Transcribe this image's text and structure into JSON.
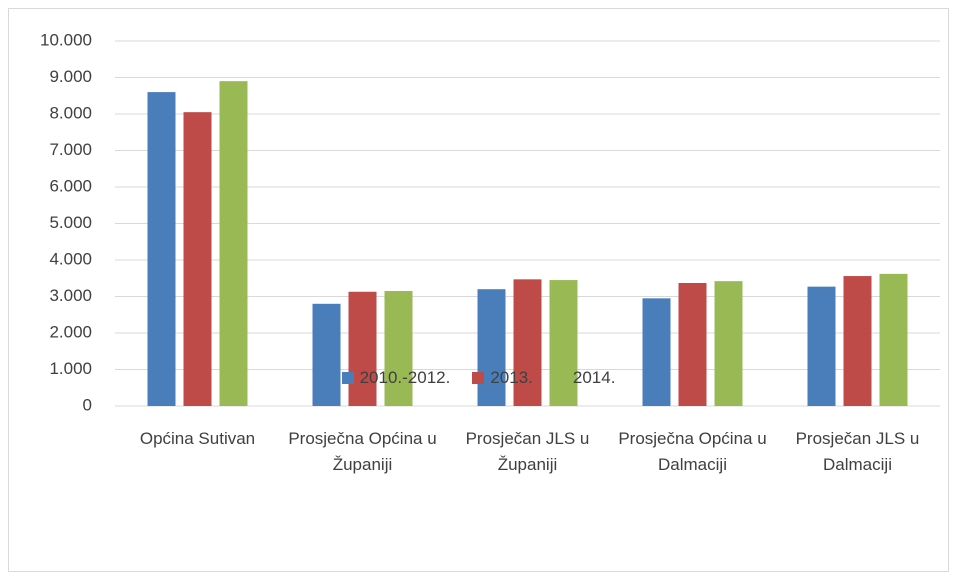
{
  "chart_data": {
    "type": "bar",
    "categories": [
      "Općina Sutivan",
      "Prosječna Općina u Županiji",
      "Prosječan JLS u Županiji",
      "Prosječna Općina u Dalmaciji",
      "Prosječan JLS u Dalmaciji"
    ],
    "series": [
      {
        "name": "2010.-2012.",
        "color": "#4a7ebb",
        "values": [
          8600,
          2800,
          3200,
          2950,
          3270
        ]
      },
      {
        "name": "2013.",
        "color": "#be4b48",
        "values": [
          8050,
          3130,
          3470,
          3370,
          3560
        ]
      },
      {
        "name": "2014.",
        "color": "#98b954",
        "values": [
          8900,
          3150,
          3450,
          3420,
          3620
        ]
      }
    ],
    "ylim": [
      0,
      10000
    ],
    "yticks": [
      0,
      {
        "value": 1000,
        "label": "1.000"
      },
      {
        "value": 2000,
        "label": "2.000"
      },
      {
        "value": 3000,
        "label": "3.000"
      },
      {
        "value": 4000,
        "label": "4.000"
      },
      {
        "value": 5000,
        "label": "5.000"
      },
      {
        "value": 6000,
        "label": "6.000"
      },
      {
        "value": 7000,
        "label": "7.000"
      },
      {
        "value": 8000,
        "label": "8.000"
      },
      {
        "value": 9000,
        "label": "9.000"
      },
      {
        "value": 10000,
        "label": "10.000"
      }
    ],
    "grid": true,
    "legend": "bottom"
  }
}
